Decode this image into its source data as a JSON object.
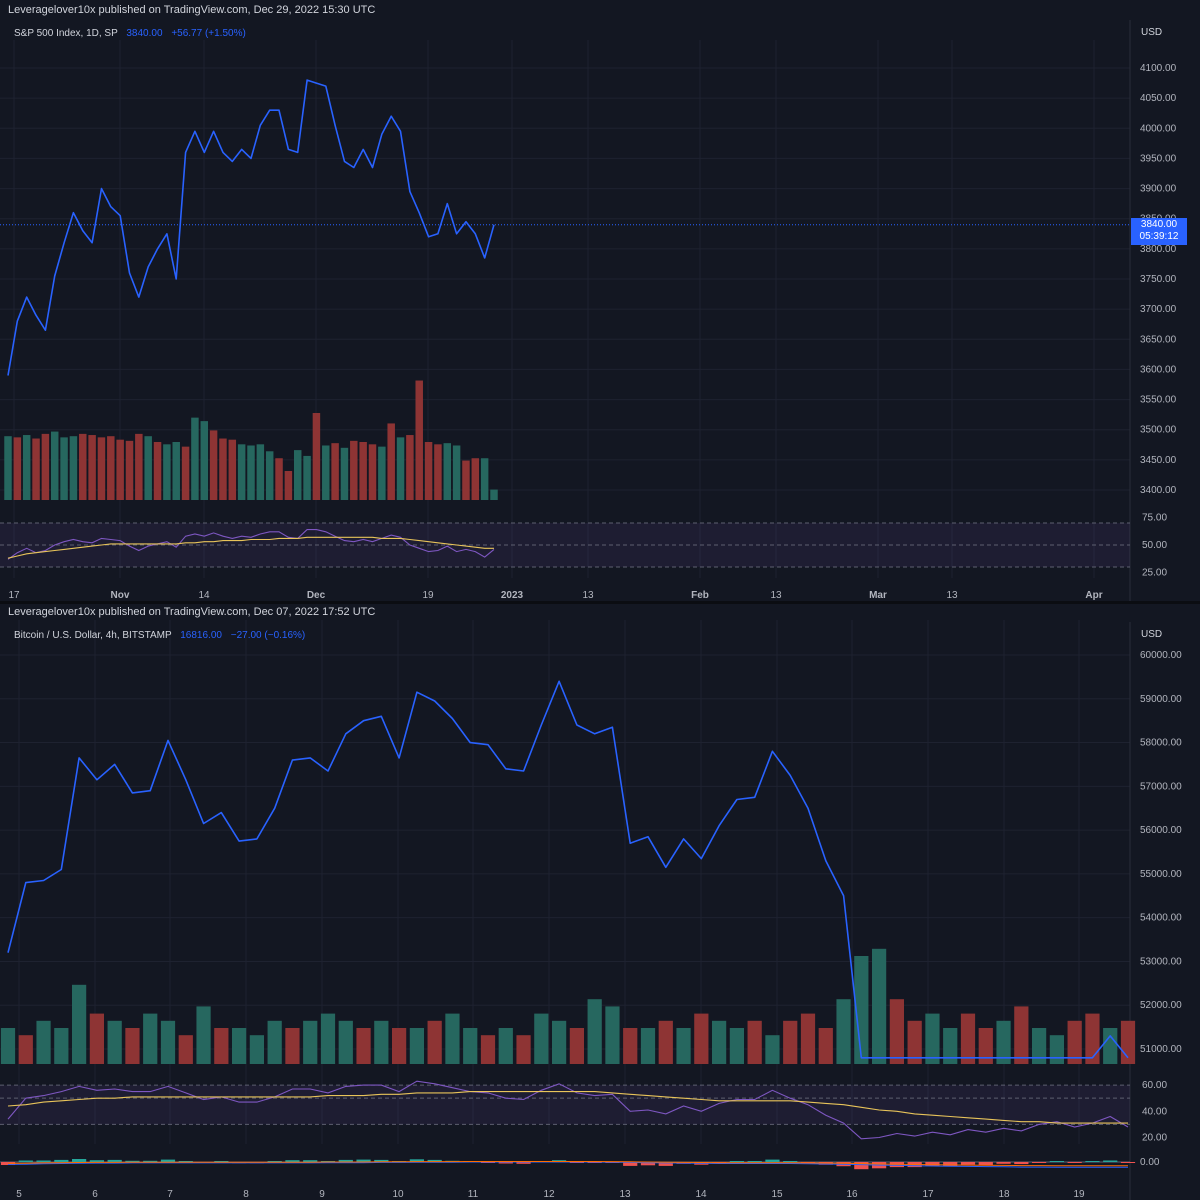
{
  "panels": [
    {
      "publisher": "Leveragelover10x published on TradingView.com, Dec 29, 2022 15:30 UTC",
      "symbol": "S&P 500 Index, 1D, SP",
      "price": "3840.00",
      "change": "+56.77 (+1.50%)",
      "currency": "USD",
      "price_tag": "3840.00",
      "countdown": "05:39:12",
      "y_ticks": [
        "4100.00",
        "4050.00",
        "4000.00",
        "3950.00",
        "3900.00",
        "3850.00",
        "3800.00",
        "3750.00",
        "3700.00",
        "3650.00",
        "3600.00",
        "3550.00",
        "3500.00",
        "3450.00",
        "3400.00"
      ],
      "rsi_ticks": [
        "75.00",
        "50.00",
        "25.00"
      ],
      "x_ticks": [
        "17",
        "Nov",
        "14",
        "Dec",
        "19",
        "2023",
        "13",
        "Feb",
        "13",
        "Mar",
        "13",
        "Apr"
      ]
    },
    {
      "publisher": "Leveragelover10x published on TradingView.com, Dec 07, 2022 17:52 UTC",
      "symbol": "Bitcoin / U.S. Dollar, 4h, BITSTAMP",
      "price": "16816.00",
      "change": "−27.00 (−0.16%)",
      "currency": "USD",
      "y_ticks": [
        "60000.00",
        "59000.00",
        "58000.00",
        "57000.00",
        "56000.00",
        "55000.00",
        "54000.00",
        "53000.00",
        "52000.00",
        "51000.00"
      ],
      "rsi_ticks": [
        "60.00",
        "40.00",
        "20.00"
      ],
      "macd_ticks": [
        "0.00"
      ],
      "x_ticks": [
        "5",
        "6",
        "7",
        "8",
        "9",
        "10",
        "11",
        "12",
        "13",
        "14",
        "15",
        "16",
        "17",
        "18",
        "19"
      ]
    }
  ],
  "colors": {
    "background": "#131722",
    "line": "#2962ff",
    "volume_up": "#26675f",
    "volume_down": "#8e3434",
    "rsi": "#7e57c2",
    "rsi_ma": "#e8c45a",
    "grid": "#1e2230"
  },
  "chart_data": [
    {
      "type": "line",
      "title": "S&P 500 Index, 1D, SP",
      "x_labels": [
        "17",
        "Nov",
        "14",
        "Dec",
        "19",
        "2023",
        "13",
        "Feb",
        "13",
        "Mar",
        "13",
        "Apr"
      ],
      "ylim": [
        3380,
        4125
      ],
      "series": [
        {
          "values": [
            3590,
            3680,
            3720,
            3690,
            3665,
            3755,
            3810,
            3860,
            3830,
            3810,
            3900,
            3870,
            3855,
            3760,
            3720,
            3770,
            3800,
            3825,
            3750,
            3960,
            3995,
            3960,
            3995,
            3960,
            3945,
            3965,
            3950,
            4005,
            4030,
            4030,
            3965,
            3960,
            4080,
            4075,
            4070,
            4005,
            3945,
            3935,
            3965,
            3935,
            3990,
            4020,
            3995,
            3895,
            3860,
            3820,
            3825,
            3875,
            3825,
            3845,
            3825,
            3785,
            3840
          ]
        }
      ],
      "volume_up": [
        true,
        false,
        true,
        false,
        false,
        true,
        true,
        true,
        false,
        false,
        false,
        false,
        false,
        false,
        false,
        true,
        false,
        true,
        true,
        false,
        true,
        true,
        false,
        false,
        false,
        true,
        true,
        true,
        true,
        false,
        false,
        true,
        true,
        false,
        true,
        false,
        true,
        false,
        false,
        false,
        true,
        false,
        true,
        false,
        false,
        false,
        false,
        true,
        true,
        false,
        false,
        true,
        true
      ],
      "volume": [
        110,
        108,
        112,
        106,
        114,
        118,
        108,
        110,
        114,
        112,
        108,
        110,
        104,
        102,
        114,
        110,
        100,
        96,
        100,
        92,
        142,
        136,
        120,
        106,
        104,
        96,
        94,
        96,
        84,
        72,
        50,
        86,
        76,
        150,
        94,
        98,
        90,
        102,
        100,
        96,
        92,
        132,
        108,
        112,
        206,
        100,
        96,
        98,
        94,
        68,
        72,
        72,
        18
      ],
      "rsi": [
        37,
        43,
        47,
        43,
        45,
        50,
        53,
        55,
        53,
        52,
        56,
        55,
        54,
        49,
        45,
        49,
        51,
        53,
        48,
        58,
        60,
        58,
        61,
        58,
        56,
        58,
        57,
        60,
        62,
        62,
        57,
        56,
        64,
        64,
        62,
        58,
        54,
        53,
        55,
        53,
        56,
        59,
        57,
        50,
        47,
        44,
        45,
        49,
        44,
        46,
        44,
        39,
        46
      ],
      "rsi_ma": [
        38,
        40,
        42,
        43,
        44,
        45,
        46,
        47,
        48,
        49,
        50,
        51,
        51,
        51,
        51,
        51,
        51,
        51,
        51,
        52,
        52,
        53,
        53,
        54,
        54,
        54,
        55,
        55,
        55,
        56,
        56,
        56,
        57,
        57,
        57,
        57,
        57,
        57,
        57,
        57,
        56,
        56,
        56,
        55,
        54,
        53,
        52,
        51,
        50,
        49,
        48,
        47,
        47
      ]
    },
    {
      "type": "line",
      "title": "Bitcoin / U.S. Dollar, 4h, BITSTAMP",
      "x_labels": [
        "5",
        "6",
        "7",
        "8",
        "9",
        "10",
        "11",
        "12",
        "13",
        "14",
        "15",
        "16",
        "17",
        "18",
        "19"
      ],
      "ylim": [
        50600,
        60300
      ],
      "series": [
        {
          "values": [
            53200,
            54800,
            54850,
            55100,
            57650,
            57150,
            57500,
            56850,
            56900,
            58050,
            57150,
            56150,
            56400,
            55750,
            55800,
            56500,
            57600,
            57650,
            57350,
            58200,
            58500,
            58600,
            57650,
            59150,
            58950,
            58550,
            58000,
            57950,
            57400,
            57350,
            58400,
            59400,
            58400,
            58200,
            58350,
            55700,
            55850,
            55150,
            55800,
            55350,
            56100,
            56700,
            56750,
            57800,
            57250,
            56500,
            55300,
            54500,
            50800,
            50800,
            50800,
            50800,
            50800,
            50800,
            50800,
            50800,
            50800,
            50800,
            50800,
            50800,
            50800,
            50800,
            51300,
            50800
          ]
        }
      ],
      "volume_up": [
        true,
        false,
        true,
        true,
        true,
        false,
        true,
        false,
        true,
        true,
        false,
        true,
        false,
        true,
        true,
        true,
        false,
        true,
        true,
        true,
        false,
        true,
        false,
        true,
        false,
        true,
        true,
        false,
        true,
        false,
        true,
        true,
        false,
        true,
        true,
        false,
        true,
        false,
        true,
        false,
        true,
        true,
        false,
        true,
        false,
        false,
        false,
        true,
        true,
        true,
        false,
        false,
        true,
        true,
        false,
        false,
        true,
        false,
        true,
        true,
        false,
        false,
        true,
        false
      ],
      "volume": [
        10,
        8,
        12,
        10,
        22,
        14,
        12,
        10,
        14,
        12,
        8,
        16,
        10,
        10,
        8,
        12,
        10,
        12,
        14,
        12,
        10,
        12,
        10,
        10,
        12,
        14,
        10,
        8,
        10,
        8,
        14,
        12,
        10,
        18,
        16,
        10,
        10,
        12,
        10,
        14,
        12,
        10,
        12,
        8,
        12,
        14,
        10,
        18,
        30,
        32,
        18,
        12,
        14,
        10,
        14,
        10,
        12,
        16,
        10,
        8,
        12,
        14,
        10,
        12
      ],
      "rsi": [
        34,
        50,
        52,
        55,
        59,
        56,
        57,
        55,
        55,
        59,
        54,
        49,
        51,
        47,
        47,
        51,
        57,
        57,
        54,
        59,
        60,
        60,
        55,
        63,
        61,
        58,
        55,
        54,
        50,
        49,
        56,
        61,
        54,
        52,
        53,
        40,
        41,
        38,
        44,
        40,
        46,
        49,
        49,
        56,
        50,
        45,
        37,
        31,
        19,
        20,
        23,
        21,
        24,
        22,
        26,
        24,
        27,
        25,
        30,
        32,
        28,
        31,
        36,
        28
      ],
      "rsi_ma": [
        44,
        45,
        47,
        48,
        49,
        50,
        50,
        51,
        51,
        51,
        51,
        51,
        51,
        51,
        51,
        51,
        51,
        51,
        52,
        52,
        52,
        53,
        53,
        54,
        54,
        54,
        55,
        55,
        55,
        55,
        55,
        55,
        55,
        55,
        54,
        53,
        52,
        51,
        50,
        49,
        48,
        48,
        48,
        48,
        48,
        47,
        46,
        45,
        43,
        41,
        40,
        38,
        37,
        36,
        35,
        34,
        33,
        32,
        32,
        31,
        31,
        31,
        31,
        31
      ]
    }
  ]
}
